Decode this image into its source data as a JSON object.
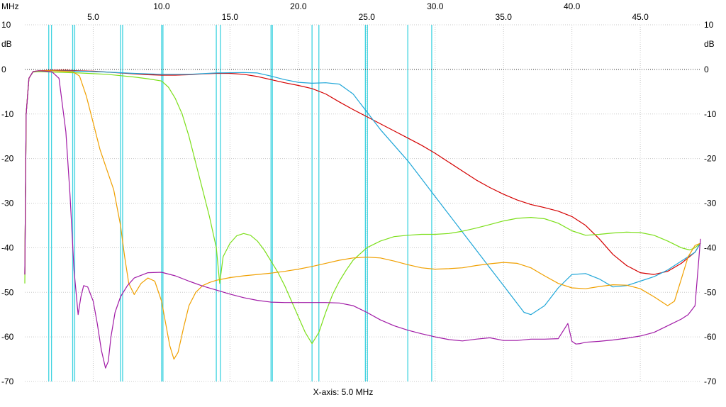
{
  "chart_data": {
    "type": "line",
    "x_unit": "MHz",
    "y_unit": "dB",
    "xlabel": "X-axis: 5.0 MHz",
    "xlim": [
      0,
      49.4
    ],
    "ylim": [
      -70,
      10
    ],
    "x_ticks_bottom": [
      5.0,
      15.0,
      25.0,
      35.0,
      45.0
    ],
    "x_ticks_bottom_labels": [
      "5.0",
      "15.0",
      "25.0",
      "35.0",
      "45.0"
    ],
    "x_ticks_top": [
      10.0,
      20.0,
      30.0,
      40.0
    ],
    "x_ticks_top_labels": [
      "10.0",
      "20.0",
      "30.0",
      "40.0"
    ],
    "y_ticks": [
      10,
      0,
      -10,
      -20,
      -30,
      -40,
      -50,
      -60,
      -70
    ],
    "y_ticks_labels": [
      "10",
      "0",
      "-10",
      "-20",
      "-30",
      "-40",
      "-50",
      "-60",
      "-70"
    ],
    "grid": true,
    "reference_line": 0,
    "markers": [
      1.75,
      1.95,
      3.5,
      3.65,
      7.0,
      7.15,
      10.0,
      10.1,
      14.0,
      14.3,
      18.0,
      18.1,
      21.0,
      21.5,
      24.9,
      25.05,
      28.0,
      29.75
    ],
    "series": [
      {
        "color": "#d40000",
        "x": [
          0.0,
          0.1,
          0.3,
          0.6,
          1.0,
          2.0,
          3.0,
          4.0,
          5.0,
          6.0,
          7.0,
          8.0,
          9.0,
          10.0,
          11.0,
          12.0,
          13.0,
          14.0,
          15.0,
          16.0,
          17.0,
          18.0,
          19.0,
          20.0,
          21.0,
          22.0,
          23.0,
          24.0,
          25.0,
          26.0,
          27.0,
          28.0,
          29.0,
          30.0,
          31.0,
          32.0,
          33.0,
          34.0,
          35.0,
          36.0,
          37.0,
          38.0,
          39.0,
          40.0,
          41.0,
          42.0,
          43.0,
          44.0,
          45.0,
          46.0,
          47.0,
          48.0,
          49.0,
          49.4
        ],
        "y": [
          -46,
          -10,
          -2,
          -0.5,
          -0.3,
          -0.2,
          -0.2,
          -0.3,
          -0.4,
          -0.6,
          -0.8,
          -1.0,
          -1.2,
          -1.3,
          -1.3,
          -1.2,
          -1.0,
          -0.9,
          -0.9,
          -1.1,
          -1.6,
          -2.3,
          -3.0,
          -3.6,
          -4.3,
          -5.5,
          -7.3,
          -9.0,
          -10.6,
          -12.2,
          -13.8,
          -15.4,
          -17.0,
          -18.8,
          -20.8,
          -22.8,
          -24.8,
          -26.5,
          -28.0,
          -29.3,
          -30.3,
          -31.0,
          -31.8,
          -33.0,
          -35.0,
          -38.0,
          -41.5,
          -44.0,
          -45.6,
          -46.0,
          -45.3,
          -43.5,
          -41.0,
          -39.0
        ]
      },
      {
        "color": "#1fa6d8",
        "x": [
          0.0,
          0.1,
          0.3,
          0.6,
          1.0,
          2.0,
          4.0,
          6.0,
          8.0,
          10.0,
          12.0,
          14.0,
          16.0,
          17.0,
          18.0,
          19.0,
          20.0,
          21.0,
          22.0,
          23.0,
          24.0,
          25.0,
          26.0,
          27.0,
          28.0,
          29.0,
          30.0,
          31.0,
          32.0,
          33.0,
          34.0,
          35.0,
          36.0,
          36.5,
          37.0,
          38.0,
          39.0,
          40.0,
          41.0,
          42.0,
          43.0,
          44.0,
          45.0,
          46.0,
          47.0,
          48.0,
          49.0,
          49.4
        ],
        "y": [
          -46,
          -10,
          -2,
          -0.5,
          -0.4,
          -0.3,
          -0.4,
          -0.6,
          -0.9,
          -1.1,
          -1.1,
          -0.8,
          -0.7,
          -0.8,
          -1.5,
          -2.3,
          -2.9,
          -3.1,
          -3.0,
          -3.3,
          -5.5,
          -9.5,
          -13.5,
          -17.0,
          -20.5,
          -24.5,
          -28.5,
          -32.5,
          -36.5,
          -40.5,
          -44.5,
          -48.5,
          -52.5,
          -54.5,
          -55.0,
          -53.0,
          -49.0,
          -46.0,
          -45.8,
          -47.0,
          -48.8,
          -48.5,
          -47.5,
          -46.5,
          -45.0,
          -43.0,
          -41.0,
          -39.0
        ]
      },
      {
        "color": "#7cdf1a",
        "x": [
          0.0,
          0.1,
          0.3,
          0.6,
          1.0,
          2.0,
          4.0,
          6.0,
          7.0,
          8.0,
          9.0,
          10.0,
          10.5,
          11.0,
          11.5,
          12.0,
          12.5,
          13.0,
          13.5,
          14.0,
          14.25,
          14.5,
          15.0,
          15.5,
          16.0,
          16.5,
          17.0,
          17.5,
          18.0,
          18.5,
          19.0,
          19.5,
          20.0,
          20.5,
          21.0,
          21.5,
          22.0,
          22.5,
          23.0,
          23.5,
          24.0,
          25.0,
          26.0,
          27.0,
          28.0,
          29.0,
          30.0,
          31.0,
          32.0,
          33.0,
          34.0,
          35.0,
          36.0,
          37.0,
          38.0,
          39.0,
          40.0,
          41.0,
          42.0,
          43.0,
          44.0,
          45.0,
          46.0,
          47.0,
          48.0,
          48.6,
          49.0,
          49.4
        ],
        "y": [
          -48,
          -10,
          -2,
          -0.6,
          -0.5,
          -0.6,
          -0.8,
          -1.1,
          -1.4,
          -1.7,
          -2.1,
          -2.6,
          -4.0,
          -6.5,
          -10.0,
          -15.0,
          -21.0,
          -27.0,
          -33.0,
          -40.0,
          -48.0,
          -42.0,
          -39.0,
          -37.3,
          -36.8,
          -37.2,
          -38.5,
          -40.5,
          -43.0,
          -45.5,
          -48.5,
          -52.0,
          -55.5,
          -59.0,
          -61.5,
          -59.0,
          -54.5,
          -50.5,
          -47.5,
          -45.0,
          -42.8,
          -40.0,
          -38.5,
          -37.5,
          -37.2,
          -37.0,
          -37.0,
          -36.8,
          -36.3,
          -35.6,
          -34.8,
          -34.0,
          -33.4,
          -33.2,
          -33.5,
          -34.5,
          -36.2,
          -37.2,
          -37.0,
          -36.7,
          -36.5,
          -36.6,
          -37.2,
          -38.5,
          -40.0,
          -40.5,
          -40.0,
          -39.0
        ]
      },
      {
        "color": "#f0a000",
        "x": [
          0.0,
          0.1,
          0.3,
          0.6,
          1.0,
          2.0,
          3.5,
          4.0,
          4.5,
          5.0,
          5.5,
          6.0,
          6.5,
          7.0,
          7.3,
          7.6,
          8.0,
          8.5,
          9.0,
          9.5,
          10.0,
          10.3,
          10.6,
          10.9,
          11.2,
          11.6,
          12.0,
          12.5,
          13.0,
          13.5,
          14.0,
          15.0,
          16.0,
          17.0,
          18.0,
          19.0,
          20.0,
          21.0,
          22.0,
          23.0,
          24.0,
          25.0,
          26.0,
          27.0,
          28.0,
          29.0,
          30.0,
          31.0,
          32.0,
          33.0,
          34.0,
          35.0,
          36.0,
          37.0,
          38.0,
          39.0,
          40.0,
          41.0,
          42.0,
          43.0,
          44.0,
          45.0,
          46.0,
          47.0,
          47.5,
          48.0,
          48.5,
          49.0,
          49.4
        ],
        "y": [
          -46,
          -10,
          -2,
          -0.5,
          -0.3,
          -0.3,
          -0.5,
          -1.5,
          -6.0,
          -12.0,
          -18.0,
          -22.5,
          -27.0,
          -35.0,
          -42.0,
          -48.0,
          -50.5,
          -48.0,
          -46.8,
          -47.5,
          -52.0,
          -57.0,
          -62.0,
          -65.0,
          -63.5,
          -58.0,
          -53.0,
          -50.0,
          -48.5,
          -47.8,
          -47.3,
          -46.7,
          -46.3,
          -46.0,
          -45.7,
          -45.3,
          -44.8,
          -44.2,
          -43.5,
          -42.8,
          -42.3,
          -42.1,
          -42.3,
          -43.0,
          -43.8,
          -44.5,
          -44.8,
          -44.7,
          -44.5,
          -44.0,
          -43.6,
          -43.3,
          -43.5,
          -44.5,
          -46.3,
          -48.0,
          -49.0,
          -49.2,
          -48.7,
          -48.3,
          -48.4,
          -49.2,
          -51.0,
          -53.0,
          -52.0,
          -47.0,
          -42.0,
          -39.5,
          -39.0
        ]
      },
      {
        "color": "#a01aa6",
        "x": [
          0.0,
          0.1,
          0.3,
          0.6,
          1.0,
          1.5,
          2.0,
          2.5,
          3.0,
          3.3,
          3.6,
          3.9,
          4.1,
          4.3,
          4.6,
          5.0,
          5.3,
          5.6,
          5.9,
          6.1,
          6.3,
          6.6,
          7.0,
          7.5,
          8.0,
          9.0,
          10.0,
          11.0,
          12.0,
          13.0,
          14.0,
          15.0,
          16.0,
          17.0,
          18.0,
          19.0,
          20.0,
          21.0,
          22.0,
          23.0,
          24.0,
          25.0,
          26.0,
          27.0,
          28.0,
          29.0,
          30.0,
          31.0,
          32.0,
          33.0,
          34.0,
          35.0,
          36.0,
          37.0,
          38.0,
          39.0,
          39.7,
          40.0,
          40.3,
          40.6,
          41.0,
          42.0,
          43.0,
          44.0,
          45.0,
          46.0,
          47.0,
          48.0,
          48.5,
          49.0,
          49.4
        ],
        "y": [
          -46,
          -10,
          -2,
          -0.5,
          -0.3,
          -0.4,
          -0.6,
          -2.0,
          -14.0,
          -28.0,
          -45.0,
          -55.0,
          -51.0,
          -48.5,
          -48.8,
          -52.0,
          -57.0,
          -63.0,
          -67.0,
          -65.5,
          -60.0,
          -54.5,
          -51.0,
          -48.5,
          -46.8,
          -45.6,
          -45.5,
          -46.3,
          -47.5,
          -48.6,
          -49.5,
          -50.4,
          -51.2,
          -51.8,
          -52.2,
          -52.3,
          -52.3,
          -52.3,
          -52.3,
          -52.4,
          -53.0,
          -54.5,
          -56.2,
          -57.5,
          -58.5,
          -59.3,
          -60.0,
          -60.6,
          -60.9,
          -60.5,
          -60.2,
          -60.8,
          -60.8,
          -60.5,
          -60.5,
          -60.4,
          -57.0,
          -61.0,
          -61.6,
          -61.5,
          -61.2,
          -61.0,
          -60.7,
          -60.3,
          -59.8,
          -59.0,
          -57.5,
          -56.0,
          -55.0,
          -53.0,
          -38.0
        ]
      }
    ]
  }
}
